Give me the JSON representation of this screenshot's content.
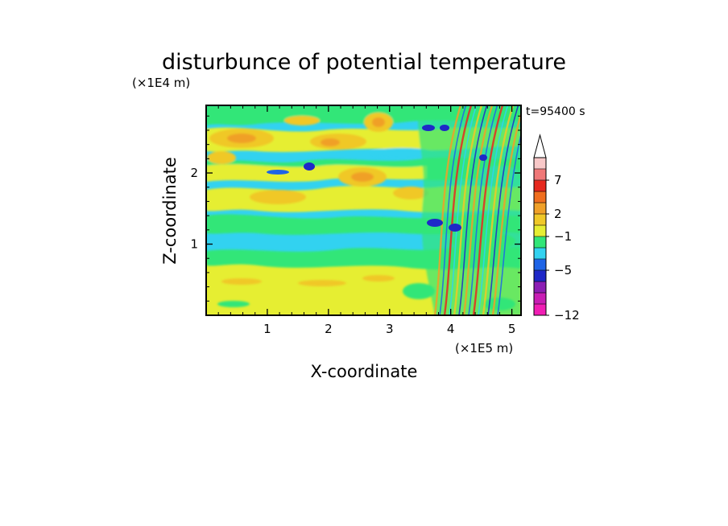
{
  "chart_data": {
    "type": "heatmap",
    "title": "disturbunce of potential temperature",
    "xlabel": "X-coordinate",
    "ylabel": "Z-coordinate",
    "x_unit": "(×1E5 m)",
    "y_unit": "(×1E4 m)",
    "time_label": "t=95400 s",
    "xlim": [
      0,
      5.15
    ],
    "ylim": [
      0,
      2.95
    ],
    "x_ticks": [
      "1",
      "2",
      "3",
      "4",
      "5"
    ],
    "y_ticks": [
      "1",
      "2"
    ],
    "colorbar": {
      "levels": [
        {
          "color": "#f01eb4"
        },
        {
          "color": "#c81eb4"
        },
        {
          "color": "#8c1eb4"
        },
        {
          "color": "#1e28c8"
        },
        {
          "color": "#1e64e6"
        },
        {
          "color": "#32d2f0"
        },
        {
          "color": "#32e678"
        },
        {
          "color": "#e6ee32"
        },
        {
          "color": "#f0c828"
        },
        {
          "color": "#f0a028"
        },
        {
          "color": "#f06e1e"
        },
        {
          "color": "#e6281e"
        },
        {
          "color": "#f07878"
        },
        {
          "color": "#f8c8c8"
        }
      ],
      "labels": [
        {
          "text": "7",
          "level": 12
        },
        {
          "text": "2",
          "level": 9
        },
        {
          "text": "−1",
          "level": 7
        },
        {
          "text": "−5",
          "level": 4
        },
        {
          "text": "−12",
          "level": 0
        }
      ]
    }
  }
}
